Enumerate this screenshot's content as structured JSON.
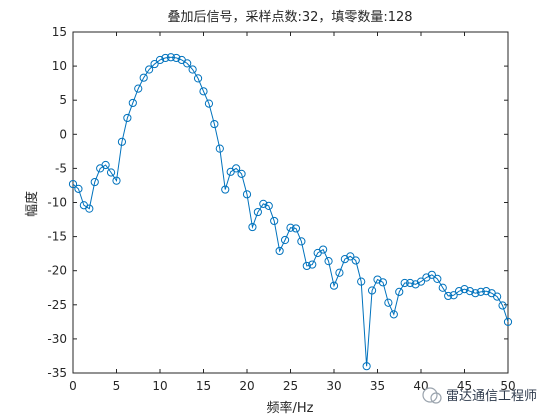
{
  "chart_data": {
    "type": "line",
    "title": "叠加后信号，采样点数:32，填零数量:128",
    "xlabel": "频率/Hz",
    "ylabel": "幅度",
    "xlim": [
      0,
      50
    ],
    "ylim": [
      -35,
      15
    ],
    "xticks": [
      0,
      5,
      10,
      15,
      20,
      25,
      30,
      35,
      40,
      45,
      50
    ],
    "yticks": [
      -35,
      -30,
      -25,
      -20,
      -15,
      -10,
      -5,
      0,
      5,
      10,
      15
    ],
    "grid": true,
    "marker": "circle",
    "color": "#0072bd",
    "series": [
      {
        "x": [
          0,
          0.625,
          1.25,
          1.875,
          2.5,
          3.125,
          3.75,
          4.375,
          5,
          5.625,
          6.25,
          6.875,
          7.5,
          8.125,
          8.75,
          9.375,
          10,
          10.625,
          11.25,
          11.875,
          12.5,
          13.125,
          13.75,
          14.375,
          15,
          15.625,
          16.25,
          16.875,
          17.5,
          18.125,
          18.75,
          19.375,
          20,
          20.625,
          21.25,
          21.875,
          22.5,
          23.125,
          23.75,
          24.375,
          25,
          25.625,
          26.25,
          26.875,
          27.5,
          28.125,
          28.75,
          29.375,
          30,
          30.625,
          31.25,
          31.875,
          32.5,
          33.125,
          33.75,
          34.375,
          35,
          35.625,
          36.25,
          36.875,
          37.5,
          38.125,
          38.75,
          39.375,
          40,
          40.625,
          41.25,
          41.875,
          42.5,
          43.125,
          43.75,
          44.375,
          45,
          45.625,
          46.25,
          46.875,
          47.5,
          48.125,
          48.75,
          49.375,
          50
        ],
        "values": [
          -7.3,
          -8.0,
          -10.4,
          -10.9,
          -7.0,
          -5.0,
          -4.5,
          -5.6,
          -6.8,
          -1.1,
          2.4,
          4.6,
          6.7,
          8.3,
          9.5,
          10.3,
          10.9,
          11.2,
          11.3,
          11.2,
          10.9,
          10.4,
          9.5,
          8.2,
          6.3,
          4.5,
          1.5,
          -2.1,
          -8.1,
          -5.5,
          -5.0,
          -5.8,
          -8.8,
          -13.6,
          -11.4,
          -10.2,
          -10.5,
          -12.7,
          -17.1,
          -15.5,
          -13.7,
          -13.8,
          -15.7,
          -19.3,
          -19.1,
          -17.4,
          -16.9,
          -18.6,
          -22.2,
          -20.3,
          -18.3,
          -17.9,
          -18.5,
          -21.6,
          -34.0,
          -22.9,
          -21.3,
          -21.7,
          -24.7,
          -26.4,
          -23.1,
          -21.8,
          -21.8,
          -22.0,
          -21.6,
          -21.0,
          -20.6,
          -21.2,
          -22.5,
          -23.7,
          -23.6,
          -23.0,
          -22.7,
          -23.0,
          -23.3,
          -23.1,
          -23.0,
          -23.3,
          -23.8,
          -25.1,
          -27.5
        ]
      }
    ]
  },
  "watermark": {
    "text": "雷达通信工程师"
  }
}
